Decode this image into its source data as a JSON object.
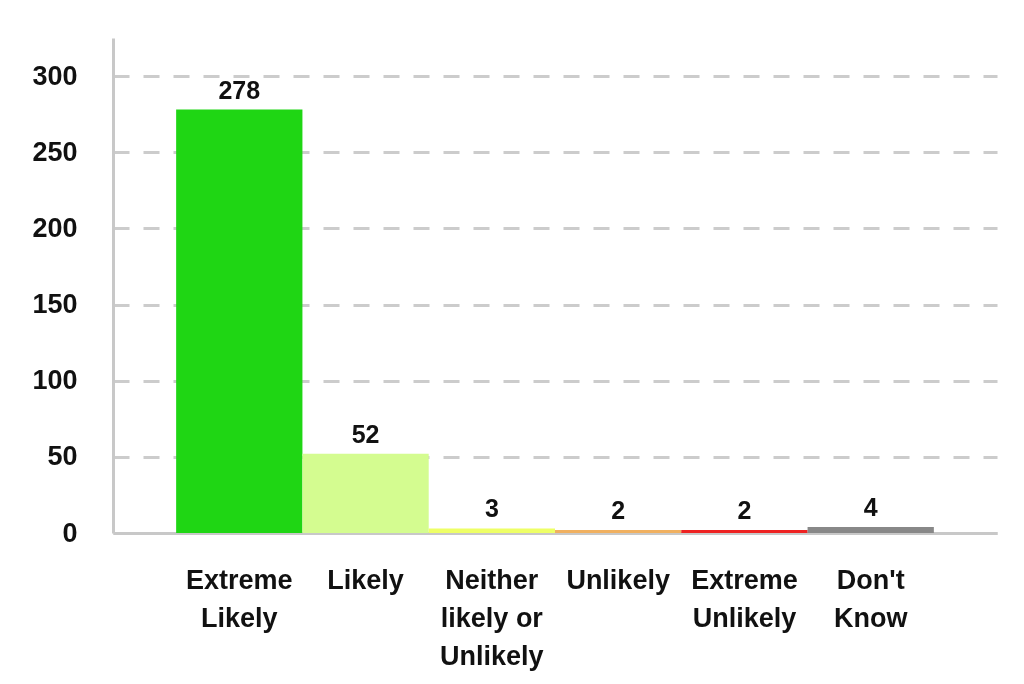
{
  "chart_data": {
    "type": "bar",
    "categories": [
      "Extreme Likely",
      "Likely",
      "Neither likely or Unlikely",
      "Unlikely",
      "Extreme Unlikely",
      "Don't Know"
    ],
    "values": [
      278,
      52,
      3,
      2,
      2,
      4
    ],
    "colors": [
      "#1fd614",
      "#d4fc90",
      "#eeff66",
      "#f0b060",
      "#ee2222",
      "#888888"
    ],
    "ylim": [
      0,
      325
    ],
    "yticks": [
      0,
      50,
      100,
      150,
      200,
      250,
      300
    ],
    "grid": "y",
    "data_labels": true
  }
}
